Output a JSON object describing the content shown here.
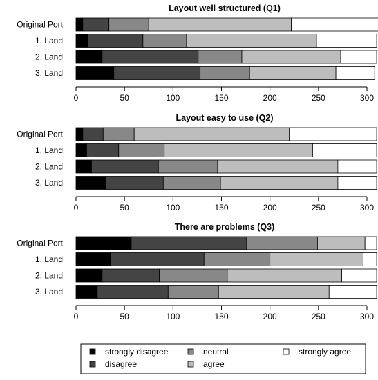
{
  "chart_data": [
    {
      "type": "bar",
      "orientation": "horizontal",
      "stacked": true,
      "title": "Layout well structured (Q1)",
      "categories": [
        "Original Port",
        "1. Land",
        "2. Land",
        "3. Land"
      ],
      "xlim": [
        0,
        310
      ],
      "xticks": [
        0,
        50,
        100,
        150,
        200,
        250,
        300
      ],
      "series": [
        {
          "name": "strongly disagree",
          "values": [
            7,
            12,
            27,
            39
          ]
        },
        {
          "name": "disagree",
          "values": [
            27,
            57,
            99,
            89
          ]
        },
        {
          "name": "neutral",
          "values": [
            41,
            45,
            45,
            51
          ]
        },
        {
          "name": "agree",
          "values": [
            147,
            134,
            102,
            89
          ]
        },
        {
          "name": "strongly agree",
          "values": [
            90,
            62,
            37,
            40
          ]
        }
      ]
    },
    {
      "type": "bar",
      "orientation": "horizontal",
      "stacked": true,
      "title": "Layout easy to use (Q2)",
      "categories": [
        "Original Port",
        "1. Land",
        "2. Land",
        "3. Land"
      ],
      "xlim": [
        0,
        310
      ],
      "xticks": [
        0,
        50,
        100,
        150,
        200,
        250,
        300
      ],
      "series": [
        {
          "name": "strongly disagree",
          "values": [
            7,
            11,
            16,
            31
          ]
        },
        {
          "name": "disagree",
          "values": [
            21,
            33,
            69,
            59
          ]
        },
        {
          "name": "neutral",
          "values": [
            32,
            47,
            61,
            59
          ]
        },
        {
          "name": "agree",
          "values": [
            160,
            153,
            124,
            121
          ]
        },
        {
          "name": "strongly agree",
          "values": [
            90,
            66,
            40,
            40
          ]
        }
      ]
    },
    {
      "type": "bar",
      "orientation": "horizontal",
      "stacked": true,
      "title": "There are problems (Q3)",
      "categories": [
        "Original Port",
        "1. Land",
        "2. Land",
        "3. Land"
      ],
      "xlim": [
        0,
        310
      ],
      "xticks": [
        0,
        50,
        100,
        150,
        200,
        250,
        300
      ],
      "series": [
        {
          "name": "strongly disagree",
          "values": [
            57,
            36,
            27,
            22
          ]
        },
        {
          "name": "disagree",
          "values": [
            119,
            96,
            59,
            73
          ]
        },
        {
          "name": "neutral",
          "values": [
            73,
            68,
            70,
            52
          ]
        },
        {
          "name": "agree",
          "values": [
            49,
            96,
            118,
            114
          ]
        },
        {
          "name": "strongly agree",
          "values": [
            12,
            14,
            36,
            49
          ]
        }
      ]
    }
  ],
  "legend": {
    "placement": "bottom",
    "items": [
      {
        "label": "strongly disagree",
        "color": "#000000"
      },
      {
        "label": "disagree",
        "color": "#444444"
      },
      {
        "label": "neutral",
        "color": "#888888"
      },
      {
        "label": "agree",
        "color": "#bdbdbd"
      },
      {
        "label": "strongly agree",
        "color": "#ffffff"
      }
    ]
  },
  "colors": {
    "strongly disagree": "#000000",
    "disagree": "#444444",
    "neutral": "#888888",
    "agree": "#bdbdbd",
    "strongly agree": "#ffffff"
  }
}
